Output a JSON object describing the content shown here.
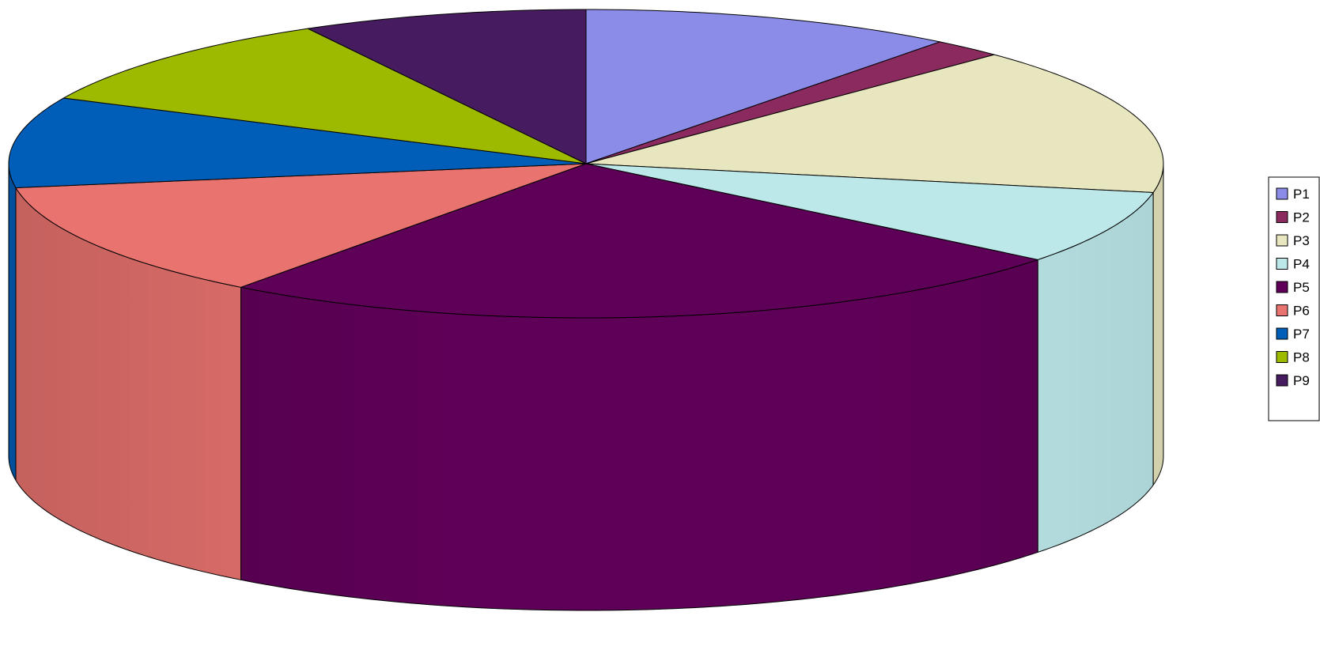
{
  "chart_data": {
    "type": "pie",
    "style": "3d",
    "title": "",
    "legend_position": "right",
    "start_angle_deg": 0,
    "direction": "clockwise",
    "slices": [
      {
        "label": "P1",
        "value": 10.5,
        "color": "#8B8BE8"
      },
      {
        "label": "P2",
        "value": 2.0,
        "color": "#8B2A5E"
      },
      {
        "label": "P3",
        "value": 15.5,
        "color": "#E8E6BE"
      },
      {
        "label": "P4",
        "value": 7.7,
        "color": "#BDE8EA"
      },
      {
        "label": "P5",
        "value": 24.5,
        "color": "#5E0057"
      },
      {
        "label": "P6",
        "value": 12.3,
        "color": "#E8736F"
      },
      {
        "label": "P7",
        "value": 9.5,
        "color": "#005EB8"
      },
      {
        "label": "P8",
        "value": 10.0,
        "color": "#9EBA00"
      },
      {
        "label": "P9",
        "value": 8.0,
        "color": "#461B60"
      }
    ]
  }
}
